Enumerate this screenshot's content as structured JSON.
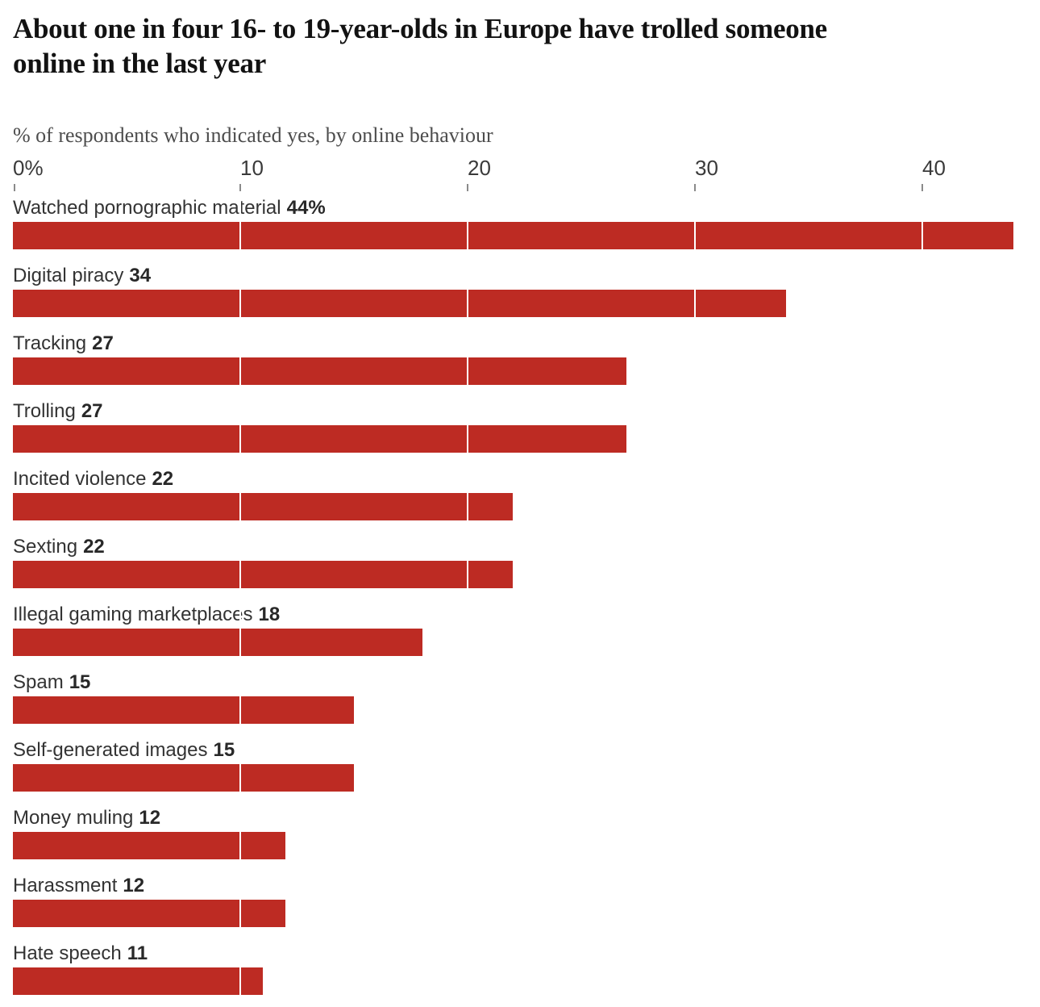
{
  "page": {
    "title_line1": "About one in four 16- to 19-year-olds in Europe have trolled someone",
    "title_line2": "online in the last year",
    "subtitle": "% of respondents who indicated yes, by online behaviour"
  },
  "colors": {
    "bar": "#bd2b23",
    "title_text": "#121212",
    "label_text": "#333333",
    "subtitle_text": "#4d4d4d",
    "tick_mark": "#8a8a8a",
    "gridline_over_bars": "#ffffff"
  },
  "chart_data": {
    "type": "bar",
    "orientation": "horizontal",
    "title": "About one in four 16- to 19-year-olds in Europe have trolled someone online in the last year",
    "subtitle": "% of respondents who indicated yes, by online behaviour",
    "categories": [
      "Watched pornographic material",
      "Digital piracy",
      "Tracking",
      "Trolling",
      "Incited violence",
      "Sexting",
      "Illegal gaming marketplaces",
      "Spam",
      "Self-generated images",
      "Money muling",
      "Harassment",
      "Hate speech"
    ],
    "values": [
      44,
      34,
      27,
      27,
      22,
      22,
      18,
      15,
      15,
      12,
      12,
      11
    ],
    "value_labels": [
      "44%",
      "34",
      "27",
      "27",
      "22",
      "22",
      "18",
      "15",
      "15",
      "12",
      "12",
      "11"
    ],
    "xlabel": "",
    "ylabel": "",
    "axis": {
      "position": "top",
      "min": 0,
      "max": 45,
      "ticks": [
        {
          "value": 0,
          "label": "0%"
        },
        {
          "value": 10,
          "label": "10"
        },
        {
          "value": 20,
          "label": "20"
        },
        {
          "value": 30,
          "label": "30"
        },
        {
          "value": 40,
          "label": "40"
        }
      ]
    },
    "legend": "none",
    "grid": "vertical white lines visible over bars at ticks 10-40"
  }
}
